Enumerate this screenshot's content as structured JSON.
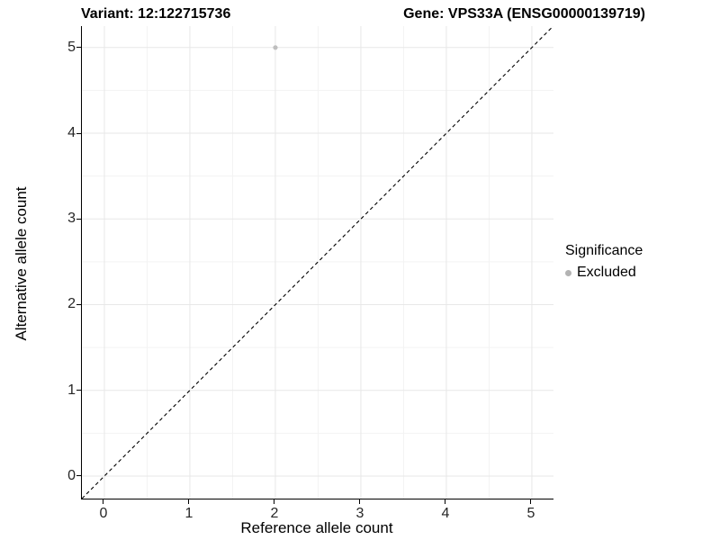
{
  "titles": {
    "left": "Variant: 12:122715736",
    "right": "Gene: VPS33A (ENSG00000139719)"
  },
  "chart_data": {
    "type": "scatter",
    "title_left": "Variant: 12:122715736",
    "title_right": "Gene: VPS33A (ENSG00000139719)",
    "xlabel": "Reference allele count",
    "ylabel": "Alternative allele count",
    "x_ticks": [
      0,
      1,
      2,
      3,
      4,
      5
    ],
    "y_ticks": [
      0,
      1,
      2,
      3,
      4,
      5
    ],
    "x_minor_ticks": [
      0.5,
      1.5,
      2.5,
      3.5,
      4.5
    ],
    "y_minor_ticks": [
      0.5,
      1.5,
      2.5,
      3.5,
      4.5
    ],
    "xlim": [
      -0.263,
      5.253
    ],
    "ylim": [
      -0.263,
      5.25
    ],
    "grid": "major+minor",
    "points": [
      {
        "x": 2,
        "y": 5,
        "series": "Excluded",
        "color": "#bebebe",
        "radius": 2.6
      }
    ],
    "identity_line": {
      "style": "dashed",
      "from": [
        -0.263,
        -0.263
      ],
      "to": [
        5.253,
        5.253
      ],
      "color": "#000000"
    },
    "legend": {
      "title": "Significance",
      "position": "right",
      "entries": [
        {
          "label": "Excluded",
          "color": "#b3b3b3"
        }
      ]
    },
    "colors": {
      "panel_background": "#ffffff",
      "grid_major": "#e7e7e7",
      "grid_minor": "#f3f3f3",
      "axis_line": "#000000",
      "point": "#bebebe"
    }
  }
}
